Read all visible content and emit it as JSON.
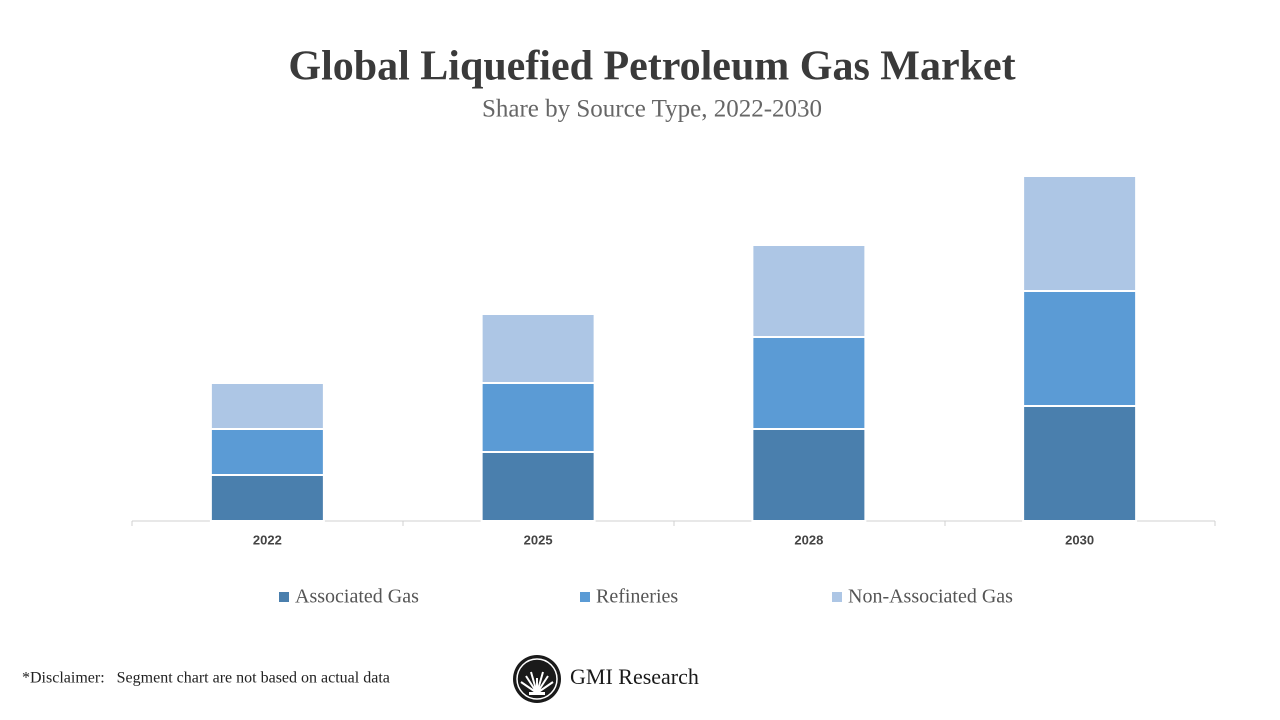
{
  "chart_data": {
    "type": "stacked_bar",
    "title": "Global Liquefied Petroleum Gas Market",
    "subtitle": "Share by Source Type, 2022-2030",
    "categories": [
      "2022",
      "2025",
      "2028",
      "2030"
    ],
    "series": [
      {
        "name": "Associated Gas",
        "color": "#4a7fad",
        "values": [
          2,
          3,
          4,
          5
        ]
      },
      {
        "name": "Refineries",
        "color": "#5b9bd5",
        "values": [
          2,
          3,
          4,
          5
        ]
      },
      {
        "name": "Non-Associated Gas",
        "color": "#adc6e5",
        "values": [
          2,
          3,
          4,
          5
        ]
      }
    ],
    "ylim": [
      0,
      15
    ],
    "grid": false,
    "legend": "bottom",
    "disclaimer": "*Disclaimer:   Segment chart are not based on actual data",
    "brand": "GMI Research"
  }
}
